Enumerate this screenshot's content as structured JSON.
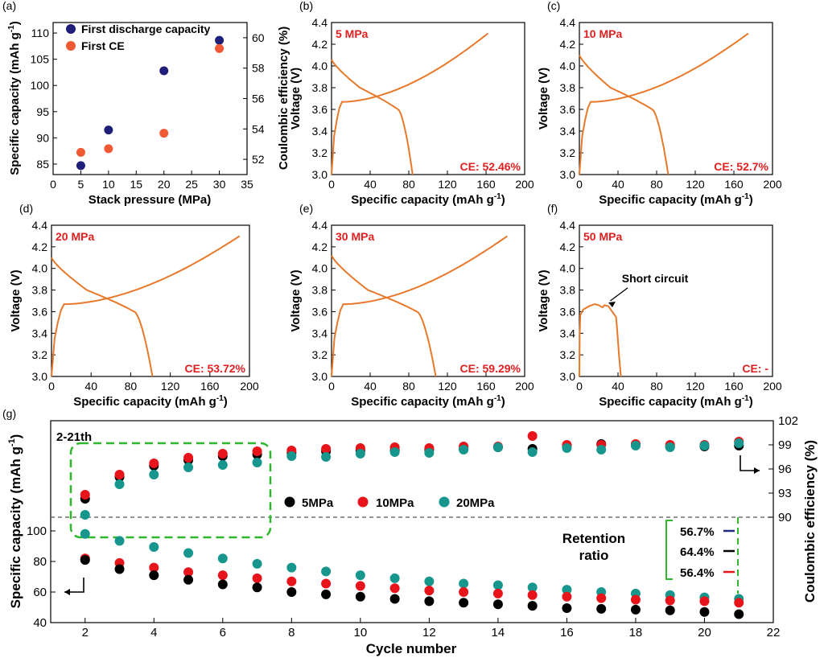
{
  "colors": {
    "navy": "#1f1f7a",
    "orangeRed": "#ef5a34",
    "curve": "#e8792b",
    "label": "#e02020",
    "black": "#000000",
    "red": "#e8141b",
    "teal": "#16968c",
    "green": "#2eb82e",
    "navyLine": "#1f2a80"
  },
  "panels": {
    "a": {
      "tag": "(a)",
      "xlabel": "Stack pressure (MPa)",
      "ylabel": "Specific capacity (mAh g",
      "ylabel_sup": "-1",
      "ylabel_close": ")",
      "y2label": "Coulombic efficiency (%)",
      "xticks": [
        "0",
        "5",
        "10",
        "15",
        "20",
        "25",
        "30",
        "35"
      ],
      "yticks": [
        "85",
        "90",
        "95",
        "100",
        "105",
        "110"
      ],
      "y2ticks": [
        "52",
        "54",
        "56",
        "58",
        "60"
      ],
      "legend": [
        "First discharge capacity",
        "First CE"
      ],
      "xlim": [
        0,
        35
      ],
      "ylim": [
        83,
        112
      ],
      "y2lim": [
        51,
        61
      ],
      "capacity": {
        "x": [
          5,
          10,
          20,
          30
        ],
        "y": [
          84.7,
          91.5,
          102.8,
          108.6
        ]
      },
      "ce": {
        "x": [
          5,
          10,
          20,
          30
        ],
        "y": [
          52.46,
          52.7,
          53.72,
          59.29
        ]
      }
    },
    "vc": [
      {
        "tag": "(b)",
        "pressure": "5 MPa",
        "ce": "CE: 52.46%",
        "cmax": 162,
        "dmax": 84,
        "dstart": 4.06,
        "short": false
      },
      {
        "tag": "(c)",
        "pressure": "10 MPa",
        "ce": "CE: 52.7%",
        "cmax": 175,
        "dmax": 92,
        "dstart": 4.1,
        "short": false
      },
      {
        "tag": "(d)",
        "pressure": "20 MPa",
        "ce": "CE: 53.72%",
        "cmax": 190,
        "dmax": 102,
        "dstart": 4.1,
        "short": false
      },
      {
        "tag": "(e)",
        "pressure": "30 MPa",
        "ce": "CE: 59.29%",
        "cmax": 182,
        "dmax": 108,
        "dstart": 4.12,
        "short": false
      },
      {
        "tag": "(f)",
        "pressure": "50 MPa",
        "ce": "CE: -",
        "short": true,
        "annotation": "Short circuit"
      }
    ],
    "vc_common": {
      "xlabel": "Specific capacity (mAh g",
      "xlabel_sup": "-1",
      "xlabel_close": ")",
      "ylabel": "Voltage (V)",
      "xticks": [
        "0",
        "40",
        "80",
        "120",
        "160",
        "200"
      ],
      "yticks": [
        "3.0",
        "3.2",
        "3.4",
        "3.6",
        "3.8",
        "4.0",
        "4.2",
        "4.4"
      ],
      "xlim": [
        0,
        200
      ],
      "ylim": [
        3.0,
        4.4
      ]
    },
    "g": {
      "tag": "(g)",
      "range_label": "2-21th",
      "xlabel": "Cycle number",
      "ylabel": "Specific capacity (mAh g",
      "ylabel_sup": "-1",
      "ylabel_close": ")",
      "y2label": "Coulombic efficiency (%)",
      "xticks": [
        "2",
        "4",
        "6",
        "8",
        "10",
        "12",
        "14",
        "16",
        "18",
        "20",
        "22"
      ],
      "yticks": [
        "40",
        "60",
        "80",
        "100"
      ],
      "y2ticks": [
        "90",
        "93",
        "96",
        "99",
        "102"
      ],
      "legend": [
        "5MPa",
        "10MPa",
        "20MPa"
      ],
      "retention_title": [
        "Retention",
        "ratio"
      ],
      "retention": [
        "56.7%",
        "64.4%",
        "56.4%"
      ],
      "cycles": [
        2,
        3,
        4,
        5,
        6,
        7,
        8,
        9,
        10,
        11,
        12,
        13,
        14,
        15,
        16,
        17,
        18,
        19,
        20,
        21
      ],
      "cap_5": [
        81,
        75,
        71,
        68,
        65,
        63,
        60,
        58.5,
        57,
        55.5,
        54,
        53,
        52,
        51,
        49.5,
        49,
        48.5,
        48,
        47,
        45.5
      ],
      "cap_10": [
        82,
        79,
        76,
        73,
        71,
        69,
        67,
        65.5,
        64,
        62.5,
        61,
        60,
        59,
        58,
        57,
        56,
        55,
        54.5,
        54,
        53
      ],
      "cap_20": [
        98,
        93.5,
        89.5,
        85.5,
        82,
        78.5,
        76,
        73.5,
        71,
        69,
        67,
        65.5,
        64.5,
        63,
        61.5,
        60,
        59,
        58,
        56.5,
        55.5
      ],
      "ce_5": [
        92.3,
        95,
        96.4,
        97.1,
        97.6,
        97.8,
        98,
        98.2,
        98.3,
        98.3,
        98.4,
        98.5,
        98.7,
        98.5,
        98.9,
        99.1,
        99,
        98.8,
        98.8,
        98.9
      ],
      "ce_10": [
        92.8,
        95.3,
        96.7,
        97.4,
        97.9,
        98.2,
        98.3,
        98.5,
        98.6,
        98.7,
        98.6,
        98.8,
        98.8,
        100.1,
        99,
        99,
        99.1,
        99,
        99,
        99.4
      ],
      "ce_20": [
        90.3,
        94.1,
        95.3,
        96.2,
        96.5,
        96.8,
        97.6,
        97.5,
        97.9,
        98.1,
        98,
        98.4,
        98.7,
        98.1,
        98.6,
        98.4,
        98.9,
        98.7,
        98.9,
        99.2
      ]
    }
  }
}
